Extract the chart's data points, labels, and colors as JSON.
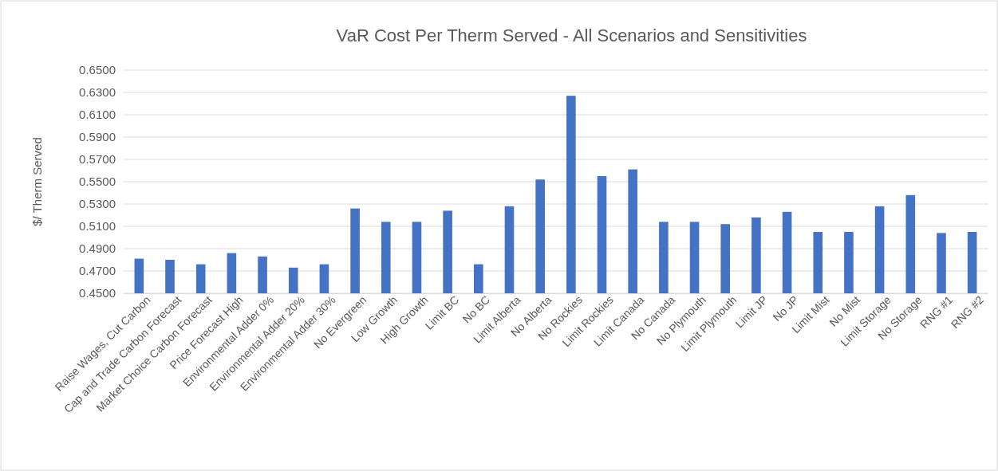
{
  "chart_data": {
    "type": "bar",
    "title": "VaR Cost Per Therm Served - All Scenarios and Sensitivities",
    "ylabel": "$/ Therm Served",
    "categories": [
      "Raise Wages, Cut Carbon",
      "Cap and Trade Carbon Forecast",
      "Market Choice Carbon Forecast",
      "Price Forecast High",
      "Environmental Adder 0%",
      "Environmental Adder 20%",
      "Environmental Adder 30%",
      "No Evergreen",
      "Low Growth",
      "High Growth",
      "Limit BC",
      "No BC",
      "Limit Alberta",
      "No Alberta",
      "No Rockies",
      "Limit Rockies",
      "Limit Canada",
      "No Canada",
      "No Plymouth",
      "Limit Plymouth",
      "Limit JP",
      "No JP",
      "Limit Mist",
      "No Mist",
      "Limit Storage",
      "No Storage",
      "RNG #1",
      "RNG #2"
    ],
    "values": [
      0.481,
      0.48,
      0.476,
      0.486,
      0.483,
      0.473,
      0.476,
      0.526,
      0.514,
      0.514,
      0.524,
      0.476,
      0.528,
      0.552,
      0.627,
      0.555,
      0.561,
      0.514,
      0.514,
      0.512,
      0.518,
      0.523,
      0.505,
      0.505,
      0.528,
      0.538,
      0.504,
      0.505
    ],
    "color": "#4472c4",
    "ylim": [
      0.45,
      0.65
    ],
    "yticks": [
      {
        "value": 0.45,
        "label": "0.4500"
      },
      {
        "value": 0.47,
        "label": "0.4700"
      },
      {
        "value": 0.49,
        "label": "0.4900"
      },
      {
        "value": 0.51,
        "label": "0.5100"
      },
      {
        "value": 0.53,
        "label": "0.5300"
      },
      {
        "value": 0.55,
        "label": "0.5500"
      },
      {
        "value": 0.57,
        "label": "0.5700"
      },
      {
        "value": 0.59,
        "label": "0.5900"
      },
      {
        "value": 0.61,
        "label": "0.6100"
      },
      {
        "value": 0.63,
        "label": "0.6300"
      },
      {
        "value": 0.65,
        "label": "0.6500"
      }
    ],
    "grid": true
  }
}
